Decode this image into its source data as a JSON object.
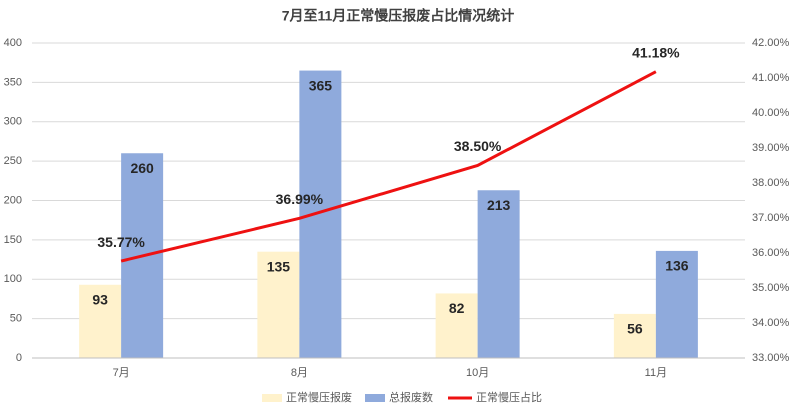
{
  "chart_data": {
    "type": "bar",
    "title": "7月至11月正常慢压报废占比情况统计",
    "categories": [
      "7月",
      "8月",
      "10月",
      "11月"
    ],
    "series": [
      {
        "name": "正常慢压报废",
        "color": "#fff2cc",
        "values": [
          93,
          135,
          82,
          56
        ]
      },
      {
        "name": "总报废数",
        "color": "#8faadc",
        "values": [
          260,
          365,
          213,
          136
        ]
      },
      {
        "name": "正常慢压占比",
        "color": "#ee1111",
        "type": "line",
        "axis": "y2",
        "values": [
          35.77,
          36.99,
          38.5,
          41.18
        ],
        "value_labels": [
          "35.77%",
          "36.99%",
          "38.50%",
          "41.18%"
        ]
      }
    ],
    "ylim": [
      0,
      400
    ],
    "yticks": [
      0,
      50,
      100,
      150,
      200,
      250,
      300,
      350,
      400
    ],
    "y2lim": [
      33,
      42
    ],
    "y2ticks": [
      {
        "value": 33,
        "label": "33.00%"
      },
      {
        "value": 34,
        "label": "34.00%"
      },
      {
        "value": 35,
        "label": "35.00%"
      },
      {
        "value": 36,
        "label": "36.00%"
      },
      {
        "value": 37,
        "label": "37.00%"
      },
      {
        "value": 38,
        "label": "38.00%"
      },
      {
        "value": 39,
        "label": "39.00%"
      },
      {
        "value": 40,
        "label": "40.00%"
      },
      {
        "value": 41,
        "label": "41.00%"
      },
      {
        "value": 42,
        "label": "42.00%"
      }
    ],
    "grid": true,
    "legend": "bottom"
  }
}
